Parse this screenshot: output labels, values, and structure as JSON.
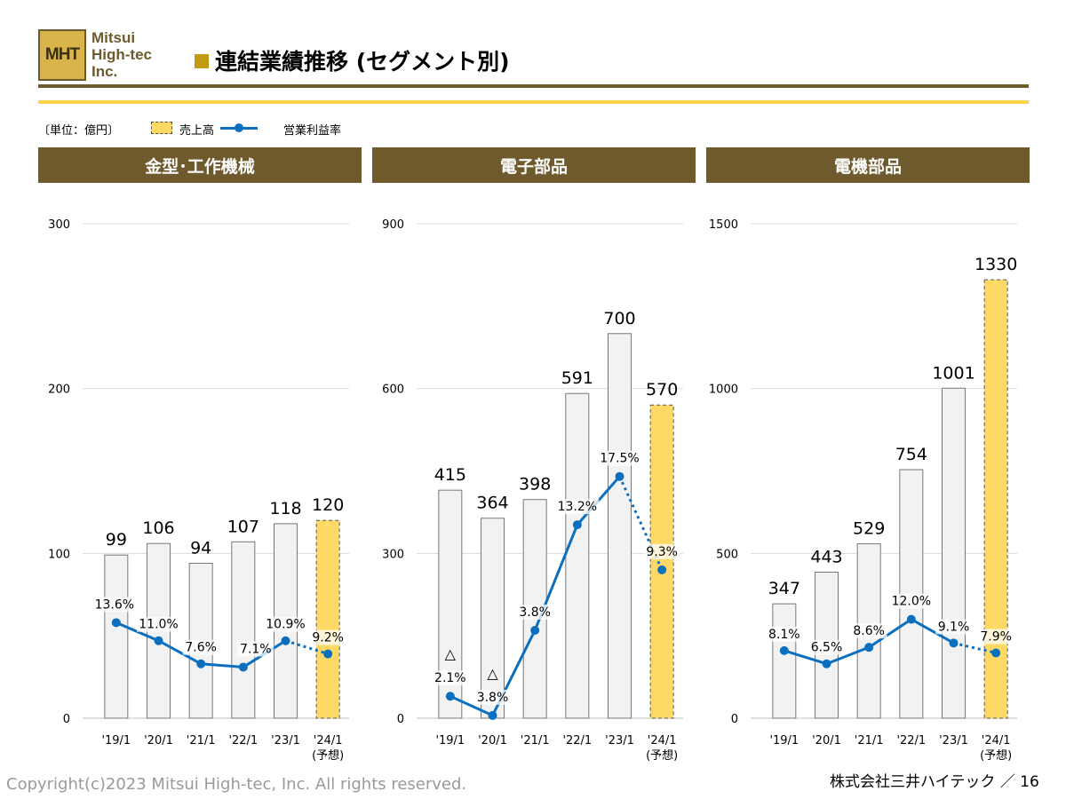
{
  "header": {
    "logo_mark": "MHT",
    "logo_lines": [
      "Mitsui",
      "High-tec",
      "Inc."
    ],
    "title": "連結業績推移 (セグメント別)"
  },
  "legend": {
    "unit": "〔単位：億円〕",
    "sales": "売上高",
    "margin": "営業利益率"
  },
  "colors": {
    "bar": "#f2f2f2",
    "bar_forecast": "#ffd966",
    "line": "#0b6fbf",
    "header": "#6e5a2c"
  },
  "chart_data": [
    {
      "type": "bar",
      "title": "金型･工作機械",
      "categories": [
        "'19/1",
        "'20/1",
        "'21/1",
        "'22/1",
        "'23/1",
        "'24/1"
      ],
      "forecast_label": "(予想)",
      "ylim": [
        0,
        300
      ],
      "yticks": [
        0,
        100,
        200,
        300
      ],
      "series": [
        {
          "name": "売上高",
          "values": [
            99,
            106,
            94,
            107,
            118,
            120
          ],
          "labels": [
            "99",
            "106",
            "94",
            "107",
            "118",
            "120"
          ]
        },
        {
          "name": "営業利益率",
          "type": "line",
          "values": [
            13.6,
            11.0,
            7.6,
            7.1,
            10.9,
            9.2
          ],
          "labels": [
            "13.6%",
            "11.0%",
            "7.6%",
            "7.1%",
            "10.9%",
            "9.2%"
          ],
          "plot_values": [
            58,
            47,
            33,
            31,
            47,
            39
          ]
        }
      ]
    },
    {
      "type": "bar",
      "title": "電子部品",
      "categories": [
        "'19/1",
        "'20/1",
        "'21/1",
        "'22/1",
        "'23/1",
        "'24/1"
      ],
      "forecast_label": "(予想)",
      "ylim": [
        0,
        900
      ],
      "yticks": [
        0,
        300,
        600,
        900
      ],
      "series": [
        {
          "name": "売上高",
          "values": [
            415,
            364,
            398,
            591,
            700,
            570
          ],
          "labels": [
            "415",
            "364",
            "398",
            "591",
            "700",
            "570"
          ]
        },
        {
          "name": "営業利益率",
          "type": "line",
          "values": [
            -2.1,
            -3.8,
            3.8,
            13.2,
            17.5,
            9.3
          ],
          "labels": [
            "2.1%",
            "3.8%",
            "3.8%",
            "13.2%",
            "17.5%",
            "9.3%"
          ],
          "negative_marks": [
            "△",
            "△",
            "",
            "",
            "",
            ""
          ],
          "plot_values": [
            40,
            5,
            160,
            352,
            440,
            270
          ]
        }
      ]
    },
    {
      "type": "bar",
      "title": "電機部品",
      "categories": [
        "'19/1",
        "'20/1",
        "'21/1",
        "'22/1",
        "'23/1",
        "'24/1"
      ],
      "forecast_label": "(予想)",
      "ylim": [
        0,
        1500
      ],
      "yticks": [
        0,
        500,
        1000,
        1500
      ],
      "series": [
        {
          "name": "売上高",
          "values": [
            347,
            443,
            529,
            754,
            1001,
            1330
          ],
          "labels": [
            "347",
            "443",
            "529",
            "754",
            "1001",
            "1330"
          ]
        },
        {
          "name": "営業利益率",
          "type": "line",
          "values": [
            8.1,
            6.5,
            8.6,
            12.0,
            9.1,
            7.9
          ],
          "labels": [
            "8.1%",
            "6.5%",
            "8.6%",
            "12.0%",
            "9.1%",
            "7.9%"
          ],
          "plot_values": [
            205,
            165,
            215,
            300,
            228,
            198
          ]
        }
      ]
    }
  ],
  "footer": {
    "copyright": "Copyright(c)2023 Mitsui High-tec, Inc. All rights reserved.",
    "company_page": "株式会社三井ハイテック ／ 16"
  }
}
